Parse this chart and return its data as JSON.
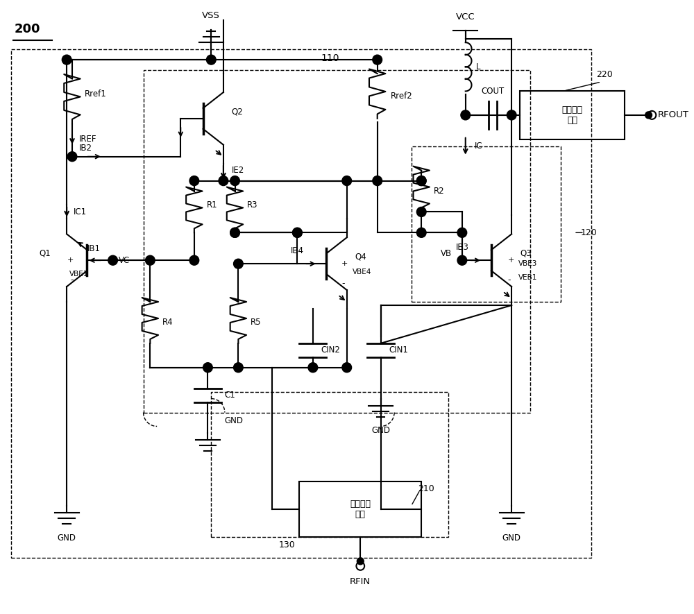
{
  "bg_color": "#ffffff",
  "line_color": "#000000",
  "dash_color": "#555555",
  "fig_width": 10.0,
  "fig_height": 8.85,
  "labels": {
    "title_200": "200",
    "vss": "VSS",
    "vcc": "VCC",
    "gnd1": "GND",
    "gnd2": "GND",
    "gnd3": "GND",
    "gnd4": "GND",
    "rfin": "RFIN",
    "rfout": "RFOUT",
    "rref1": "Rref1",
    "rref2": "Rref2",
    "r1": "R1",
    "r2": "R2",
    "r3": "R3",
    "r4": "R4",
    "r5": "R5",
    "q1": "Q1",
    "q2": "Q2",
    "q3": "Q3",
    "q4": "Q4",
    "c1": "C1",
    "cin1": "CIN1",
    "cin2": "CIN2",
    "cout": "COUT",
    "l": "L",
    "iref": "IREF",
    "ib2": "IB2",
    "ie2": "IE2",
    "ic1": "IC1",
    "ic": "IC",
    "ib1": "IB1",
    "ib3": "IB3",
    "ib4": "IB4",
    "vc": "VC",
    "vb": "VB",
    "vbe1": "VBE1",
    "vbe3": "VBE3",
    "vbe4": "VBE4",
    "veb1": "VEB1",
    "output_match": "输出匹配\n电路",
    "input_match": "输入匹配\n电路",
    "label_110": "110",
    "label_120": "120",
    "label_130": "130",
    "label_210": "210",
    "label_220": "220"
  }
}
